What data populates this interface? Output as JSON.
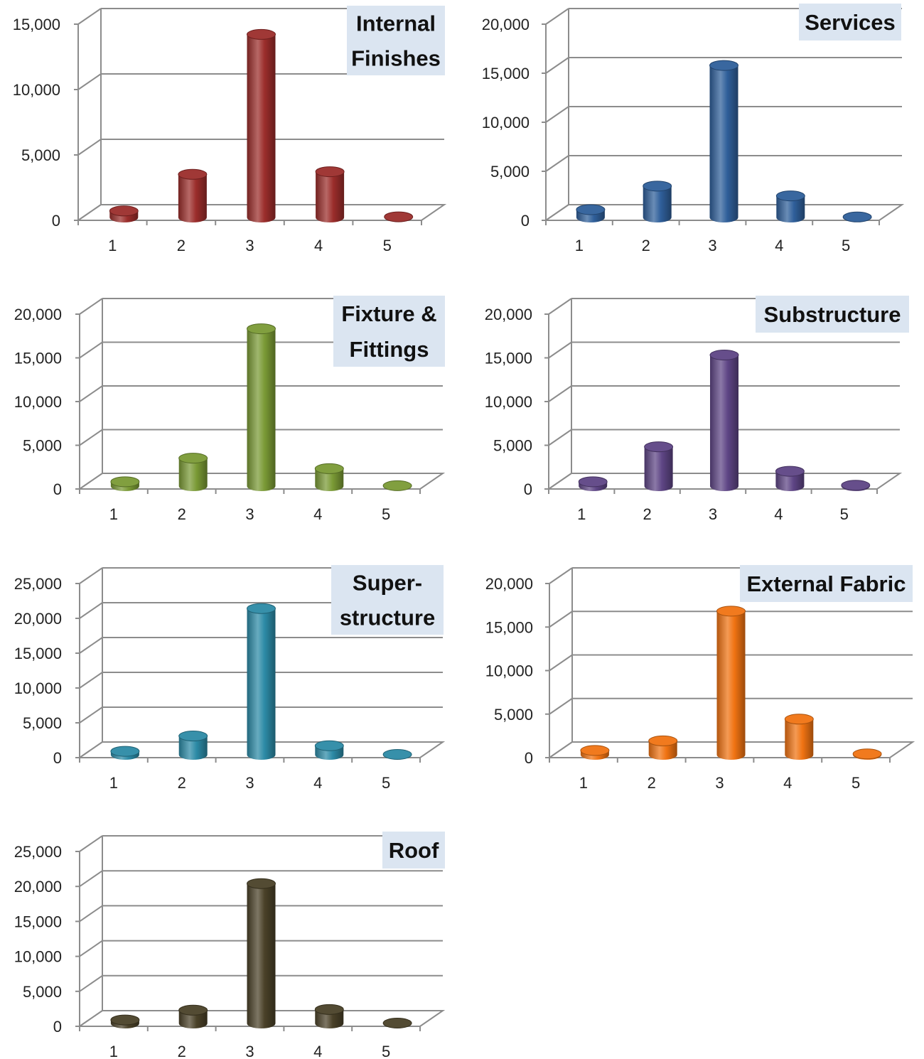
{
  "chart_data": [
    {
      "type": "bar",
      "title_lines": [
        "Internal",
        "Finishes"
      ],
      "categories": [
        "1",
        "2",
        "3",
        "4",
        "5"
      ],
      "values": [
        500,
        3300,
        14000,
        3500,
        50
      ],
      "ylim": [
        0,
        15000
      ],
      "yticks": [
        "0",
        "5,000",
        "10,000",
        "15,000"
      ],
      "color": "#9b2d2b",
      "grid": true
    },
    {
      "type": "bar",
      "title_lines": [
        "Services"
      ],
      "categories": [
        "1",
        "2",
        "3",
        "4",
        "5"
      ],
      "values": [
        800,
        3200,
        15500,
        2200,
        50
      ],
      "ylim": [
        0,
        20000
      ],
      "yticks": [
        "0",
        "5,000",
        "10,000",
        "15,000",
        "20,000"
      ],
      "color": "#2f5f9a",
      "grid": true
    },
    {
      "type": "bar",
      "title_lines": [
        "Fixture &",
        "Fittings"
      ],
      "categories": [
        "1",
        "2",
        "3",
        "4",
        "5"
      ],
      "values": [
        500,
        3200,
        18000,
        2000,
        50
      ],
      "ylim": [
        0,
        20000
      ],
      "yticks": [
        "0",
        "5,000",
        "10,000",
        "15,000",
        "20,000"
      ],
      "color": "#7a9a35",
      "grid": true
    },
    {
      "type": "bar",
      "title_lines": [
        "Substructure"
      ],
      "categories": [
        "1",
        "2",
        "3",
        "4",
        "5"
      ],
      "values": [
        500,
        4500,
        15000,
        1700,
        100
      ],
      "ylim": [
        0,
        20000
      ],
      "yticks": [
        "0",
        "5,000",
        "10,000",
        "15,000",
        "20,000"
      ],
      "color": "#5e4585",
      "grid": true
    },
    {
      "type": "bar",
      "title_lines": [
        "Super-",
        "structure"
      ],
      "categories": [
        "1",
        "2",
        "3",
        "4",
        "5"
      ],
      "values": [
        500,
        2700,
        21000,
        1300,
        50
      ],
      "ylim": [
        0,
        25000
      ],
      "yticks": [
        "0",
        "5,000",
        "10,000",
        "15,000",
        "20,000",
        "25,000"
      ],
      "color": "#2c8aa6",
      "grid": true
    },
    {
      "type": "bar",
      "title_lines": [
        "External Fabric"
      ],
      "categories": [
        "1",
        "2",
        "3",
        "4",
        "5"
      ],
      "values": [
        500,
        1600,
        16500,
        4100,
        100
      ],
      "ylim": [
        0,
        20000
      ],
      "yticks": [
        "0",
        "5,000",
        "10,000",
        "15,000",
        "20,000"
      ],
      "color": "#f07312",
      "grid": true
    },
    {
      "type": "bar",
      "title_lines": [
        "Roof"
      ],
      "categories": [
        "1",
        "2",
        "3",
        "4",
        "5"
      ],
      "values": [
        500,
        1900,
        20000,
        2000,
        50
      ],
      "ylim": [
        0,
        25000
      ],
      "yticks": [
        "0",
        "5,000",
        "10,000",
        "15,000",
        "20,000",
        "25,000"
      ],
      "color": "#4a4128",
      "grid": true
    }
  ]
}
